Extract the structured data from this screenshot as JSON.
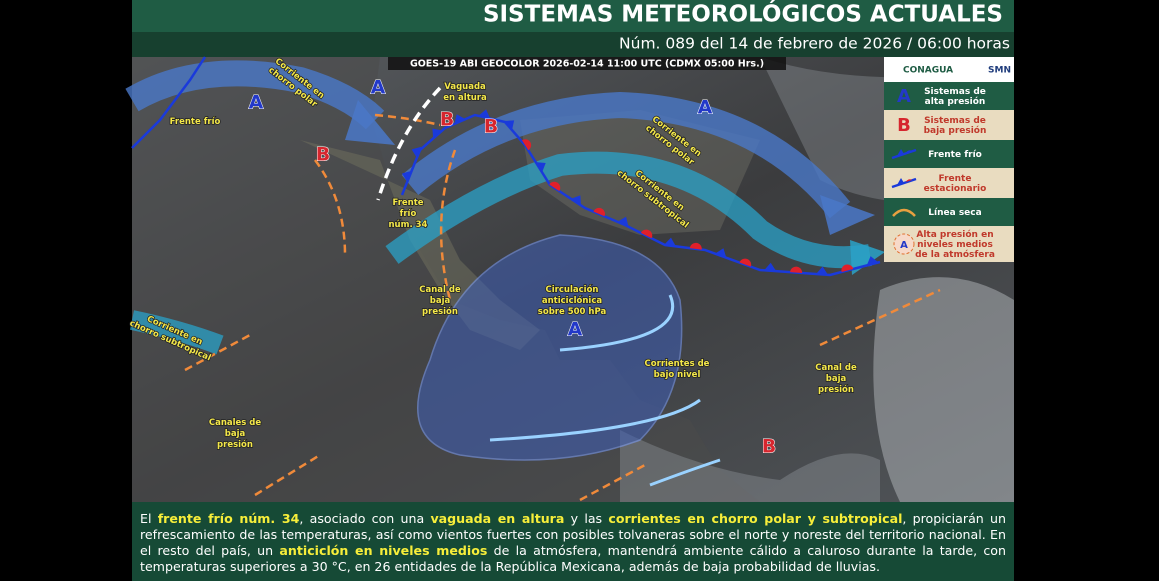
{
  "header": {
    "title": "SISTEMAS METEOROLÓGICOS ACTUALES",
    "subtitle": "Núm. 089 del 14 de febrero de 2026 / 06:00 horas"
  },
  "map": {
    "satellite_caption": "GOES-19 ABI GEOCOLOR 2026-02-14 11:00 UTC (CDMX  05:00 Hrs.)",
    "centers": [
      "A",
      "A",
      "A",
      "A",
      "B",
      "B",
      "B",
      "B"
    ],
    "labels": [
      [
        "Corriente en",
        "chorro polar"
      ],
      [
        "Frente frío"
      ],
      [
        "Vaguada",
        "en altura"
      ],
      [
        "Frente",
        "frío",
        "núm. 34"
      ],
      [
        "Corriente en",
        "chorro polar"
      ],
      [
        "Corriente en",
        "chorro subtropical"
      ],
      [
        "Canal de",
        "baja",
        "presión"
      ],
      [
        "Circulación",
        "anticiclónica",
        "sobre 500 hPa"
      ],
      [
        "Corriente en",
        "chorro subtropical"
      ],
      [
        "Corrientes de",
        "bajo nivel"
      ],
      [
        "Canal de",
        "baja",
        "presión"
      ],
      [
        "Canales de",
        "baja",
        "presión"
      ]
    ]
  },
  "legend": {
    "logos": [
      "CONAGUA",
      "SMN"
    ],
    "items": [
      {
        "symbol": "A",
        "label": [
          "Sistemas de",
          "alta presión"
        ]
      },
      {
        "symbol": "B",
        "label": [
          "Sistemas de",
          "baja presión"
        ]
      },
      {
        "label": [
          "Frente frío"
        ]
      },
      {
        "label": [
          "Frente",
          "estacionario"
        ]
      },
      {
        "label": [
          "Línea seca"
        ]
      },
      {
        "symbol": "A",
        "label": [
          "Alta presión en",
          "niveles medios",
          "de la atmósfera"
        ]
      }
    ]
  },
  "footer": {
    "segments": [
      "El ",
      "frente frío núm. 34",
      ", asociado con una ",
      "vaguada en altura",
      " y las ",
      "corrientes en chorro polar y subtropical",
      ", propiciarán un refrescamiento de las temperaturas, así como vientos fuertes con posibles tolvaneras sobre el norte y noreste del territorio nacional. En el resto del país, un ",
      "anticiclón en niveles medios",
      " de la atmósfera, mantendrá ambiente cálido a caluroso durante la tarde, con temperaturas superiores a 30 °C, en 26 entidades de la República Mexicana, además de baja probabilidad de lluvias."
    ]
  }
}
